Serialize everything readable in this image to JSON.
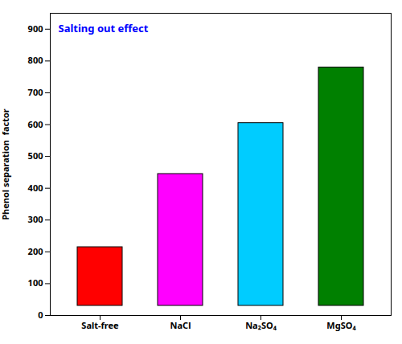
{
  "chart_data": {
    "type": "bar",
    "categories": [
      "Salt-free",
      "NaCl",
      "Na₂SO₄",
      "MgSO₄"
    ],
    "values": [
      245,
      475,
      635,
      810
    ],
    "colors": [
      "#ff0000",
      "#ff00ff",
      "#00ccff",
      "#008000"
    ],
    "ylabel": "Phenol separation  factor",
    "ylim": [
      0,
      950
    ],
    "yticks": [
      0,
      100,
      200,
      300,
      400,
      500,
      600,
      700,
      800,
      900
    ],
    "annotations": [
      "Salting out effect"
    ],
    "grid": false
  }
}
